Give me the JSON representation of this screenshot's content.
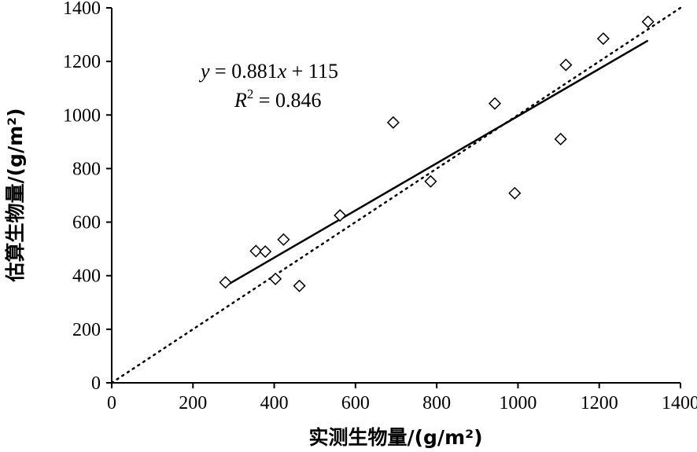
{
  "chart_data": {
    "type": "scatter",
    "xlabel": "实测生物量/(g/m²)",
    "ylabel": "估算生物量/(g/m²)",
    "xlim": [
      0,
      1400
    ],
    "ylim": [
      0,
      1400
    ],
    "x_ticks": [
      0,
      200,
      400,
      600,
      800,
      1000,
      1200,
      1400
    ],
    "y_ticks": [
      0,
      200,
      400,
      600,
      800,
      1000,
      1200,
      1400
    ],
    "grid": false,
    "marker": "diamond-open",
    "points": [
      {
        "x": 280,
        "y": 375
      },
      {
        "x": 355,
        "y": 492
      },
      {
        "x": 378,
        "y": 490
      },
      {
        "x": 403,
        "y": 388
      },
      {
        "x": 423,
        "y": 535
      },
      {
        "x": 462,
        "y": 362
      },
      {
        "x": 562,
        "y": 625
      },
      {
        "x": 693,
        "y": 972
      },
      {
        "x": 785,
        "y": 752
      },
      {
        "x": 943,
        "y": 1043
      },
      {
        "x": 992,
        "y": 708
      },
      {
        "x": 1105,
        "y": 910
      },
      {
        "x": 1118,
        "y": 1187
      },
      {
        "x": 1210,
        "y": 1285
      },
      {
        "x": 1320,
        "y": 1348
      }
    ],
    "fit_line": {
      "slope": 0.881,
      "intercept": 115,
      "x_range": [
        280,
        1320
      ],
      "style": "solid"
    },
    "reference_line": {
      "slope": 1,
      "intercept": 0,
      "x_range": [
        0,
        1400
      ],
      "style": "dotted"
    },
    "annotation": {
      "equation_y": "y",
      "equation_rest": " = 0.881",
      "equation_x": "x",
      "equation_tail": " + 115",
      "r2_R": "R",
      "r2_sup": "2",
      "r2_rest": " = 0.846"
    }
  }
}
